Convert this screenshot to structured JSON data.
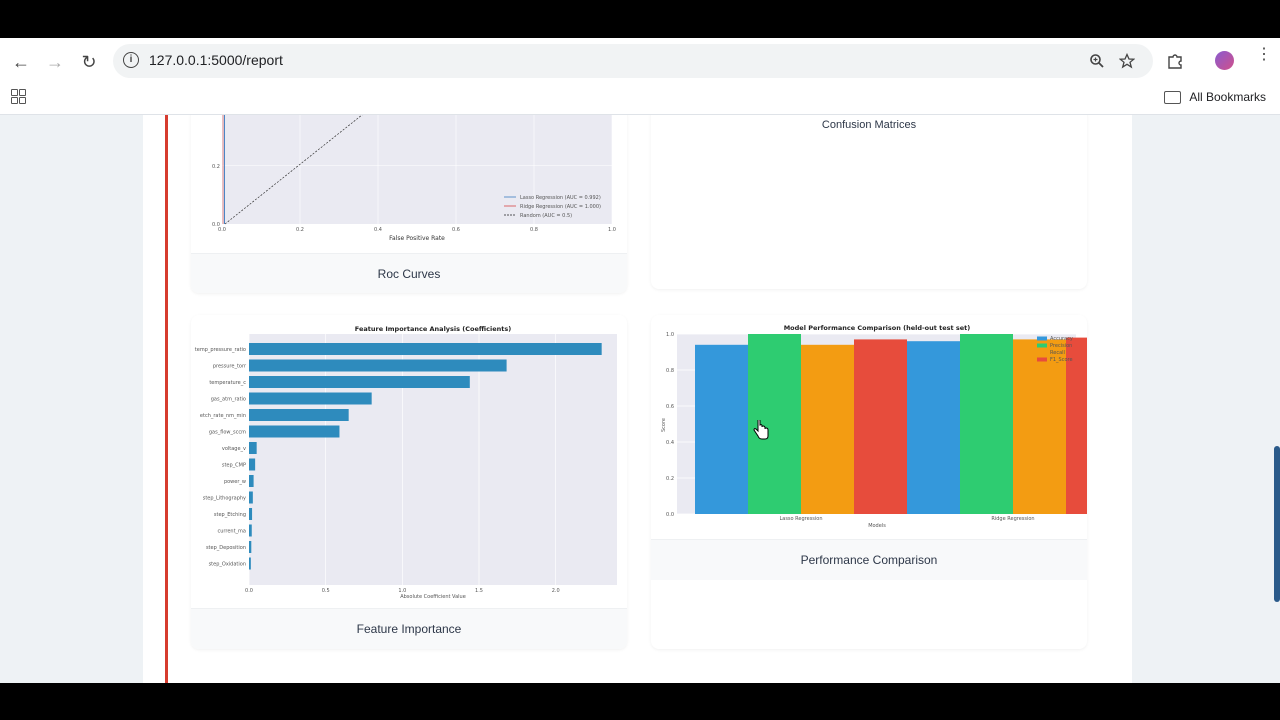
{
  "browser": {
    "url": "127.0.0.1:5000/report",
    "all_bookmarks": "All Bookmarks"
  },
  "roc": {
    "caption": "Roc Curves",
    "xlabel": "False Positive Rate",
    "y_ticks": [
      "0.2",
      "0.0"
    ],
    "x_ticks": [
      "0.0",
      "0.2",
      "0.4",
      "0.6",
      "0.8",
      "1.0"
    ],
    "legend": [
      {
        "label": "Lasso Regression (AUC = 0.992)",
        "color": "#3b7bbf"
      },
      {
        "label": "Ridge Regression (AUC = 1.000)",
        "color": "#d64545"
      },
      {
        "label": "Random (AUC = 0.5)",
        "color": "#222222"
      }
    ]
  },
  "confusion": {
    "title": "Confusion Matrices"
  },
  "feature_importance": {
    "caption": "Feature Importance",
    "chart_title": "Feature Importance Analysis (Coefficients)",
    "xlabel": "Absolute Coefficient Value",
    "x_ticks": [
      "0.0",
      "0.5",
      "1.0",
      "1.5",
      "2.0"
    ],
    "chart_data": {
      "type": "bar",
      "orientation": "horizontal",
      "categories": [
        "temp_pressure_ratio",
        "pressure_torr",
        "temperature_c",
        "gas_atm_ratio",
        "etch_rate_nm_min",
        "gas_flow_sccm",
        "voltage_v",
        "step_CMP",
        "power_w",
        "step_Lithography",
        "step_Etching",
        "current_ma",
        "step_Deposition",
        "step_Oxidation"
      ],
      "values": [
        2.3,
        1.68,
        1.44,
        0.8,
        0.65,
        0.59,
        0.05,
        0.04,
        0.03,
        0.025,
        0.02,
        0.018,
        0.015,
        0.012
      ],
      "xlim": [
        0,
        2.4
      ],
      "color": "#2e8bbd"
    }
  },
  "performance": {
    "caption": "Performance Comparison",
    "chart_title": "Model Performance Comparison (held-out test set)",
    "xlabel": "Models",
    "ylabel": "Score",
    "y_ticks": [
      "1.0",
      "0.8",
      "0.6",
      "0.4",
      "0.2",
      "0.0"
    ],
    "chart_data": {
      "type": "bar",
      "categories": [
        "Lasso Regression",
        "Ridge Regression"
      ],
      "series": [
        {
          "name": "Accuracy",
          "values": [
            0.94,
            0.96
          ],
          "color": "#3498db"
        },
        {
          "name": "Precision",
          "values": [
            1.0,
            1.0
          ],
          "color": "#2ecc71"
        },
        {
          "name": "Recall",
          "values": [
            0.94,
            0.97
          ],
          "color": "#f39c12"
        },
        {
          "name": "F1_Score",
          "values": [
            0.97,
            0.98
          ],
          "color": "#e74c3c"
        }
      ],
      "ylim": [
        0,
        1.0
      ],
      "legend": "top-right"
    }
  }
}
